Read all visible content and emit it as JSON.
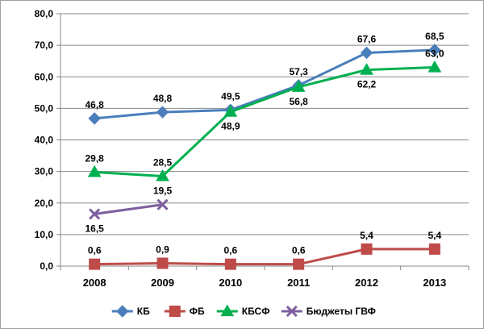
{
  "chart_data": {
    "type": "line",
    "title": "",
    "xlabel": "",
    "ylabel": "",
    "categories": [
      "2008",
      "2009",
      "2010",
      "2011",
      "2012",
      "2013"
    ],
    "ylim": [
      0,
      80
    ],
    "y_ticks": [
      "0,0",
      "10,0",
      "20,0",
      "30,0",
      "40,0",
      "50,0",
      "60,0",
      "70,0",
      "80,0"
    ],
    "grid": true,
    "legend_position": "bottom",
    "series": [
      {
        "name": "КБ",
        "color": "#4a7ebb",
        "marker": "diamond",
        "values": [
          46.8,
          48.8,
          49.5,
          57.3,
          67.6,
          68.5
        ],
        "labels": [
          "46,8",
          "48,8",
          "49,5",
          "57,3",
          "67,6",
          "68,5"
        ],
        "label_position": [
          "above",
          "above",
          "above",
          "above",
          "above",
          "above"
        ]
      },
      {
        "name": "ФБ",
        "color": "#be4b48",
        "marker": "square",
        "values": [
          0.6,
          0.9,
          0.6,
          0.6,
          5.4,
          5.4
        ],
        "labels": [
          "0,6",
          "0,9",
          "0,6",
          "0,6",
          "5,4",
          "5,4"
        ],
        "label_position": [
          "above",
          "above",
          "above",
          "above",
          "above",
          "above"
        ]
      },
      {
        "name": "КБСФ",
        "color": "#00b050",
        "marker": "triangle",
        "values": [
          29.8,
          28.5,
          48.9,
          56.8,
          62.2,
          63.0
        ],
        "labels": [
          "29,8",
          "28,5",
          "48,9",
          "56,8",
          "62,2",
          "63,0"
        ],
        "label_position": [
          "above",
          "above",
          "below",
          "below",
          "below",
          "above"
        ]
      },
      {
        "name": "Бюджеты ГВФ",
        "color": "#7d5fa0",
        "marker": "x",
        "values": [
          16.5,
          19.5,
          null,
          null,
          null,
          null
        ],
        "labels": [
          "16,5",
          "19,5",
          "",
          "",
          "",
          ""
        ],
        "label_position": [
          "below",
          "above",
          "",
          "",
          "",
          ""
        ]
      }
    ]
  }
}
